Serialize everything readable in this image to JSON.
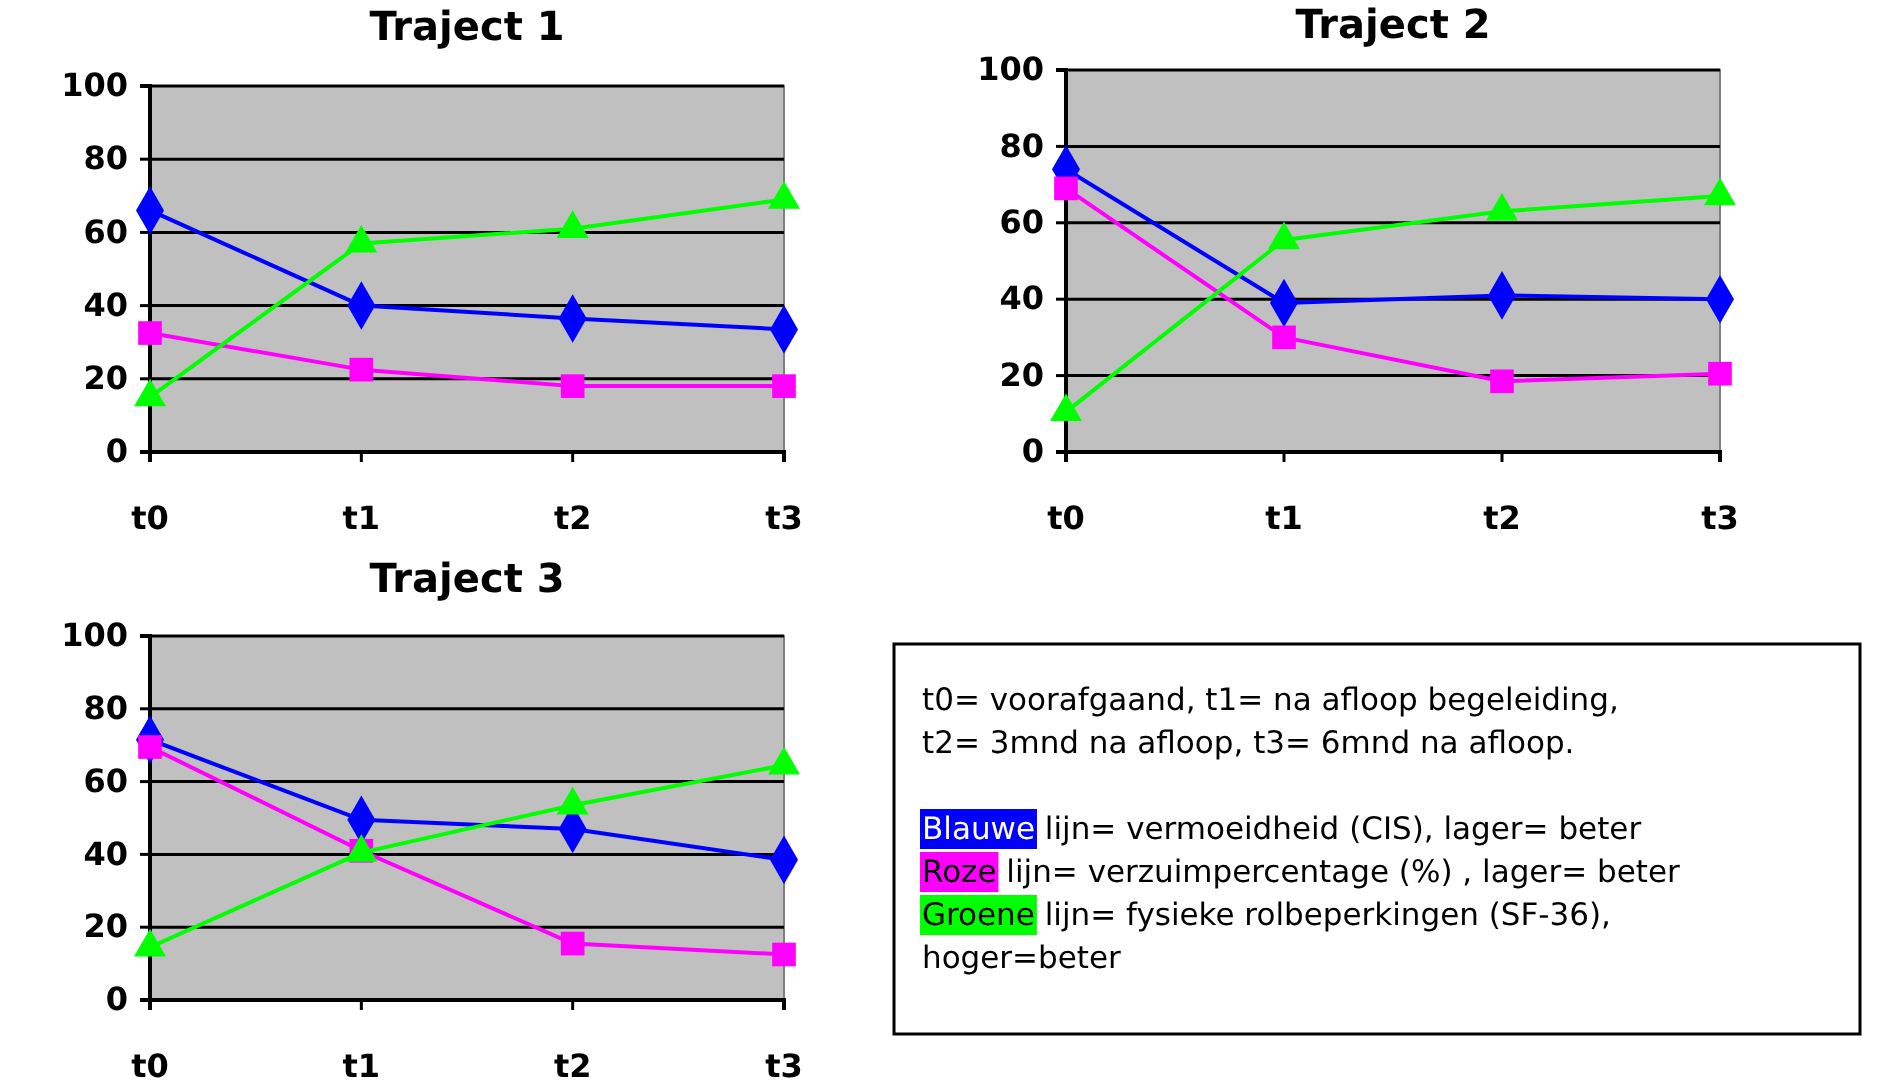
{
  "chart_data": [
    {
      "type": "line",
      "title": "Traject 1",
      "categories": [
        "t0",
        "t1",
        "t2",
        "t3"
      ],
      "ylim": [
        0,
        100
      ],
      "yticks": [
        0,
        20,
        40,
        60,
        80,
        100
      ],
      "grid": "y",
      "series": [
        {
          "color": "#0000ff",
          "marker": "diamond",
          "values": [
            66,
            40,
            36.5,
            33.5
          ]
        },
        {
          "color": "#ff00ff",
          "marker": "square",
          "values": [
            32.5,
            22.5,
            18,
            18
          ]
        },
        {
          "color": "#00ff00",
          "marker": "triangle",
          "values": [
            15,
            57,
            61,
            69
          ]
        }
      ]
    },
    {
      "type": "line",
      "title": "Traject 2",
      "categories": [
        "t0",
        "t1",
        "t2",
        "t3"
      ],
      "ylim": [
        0,
        100
      ],
      "yticks": [
        0,
        20,
        40,
        60,
        80,
        100
      ],
      "grid": "y",
      "series": [
        {
          "color": "#0000ff",
          "marker": "diamond",
          "values": [
            74,
            39,
            41,
            40
          ]
        },
        {
          "color": "#ff00ff",
          "marker": "square",
          "values": [
            69,
            30,
            18.5,
            20.5
          ]
        },
        {
          "color": "#00ff00",
          "marker": "triangle",
          "values": [
            10.5,
            55.5,
            63,
            67
          ]
        }
      ]
    },
    {
      "type": "line",
      "title": "Traject 3",
      "categories": [
        "t0",
        "t1",
        "t2",
        "t3"
      ],
      "ylim": [
        0,
        100
      ],
      "yticks": [
        0,
        20,
        40,
        60,
        80,
        100
      ],
      "grid": "y",
      "series": [
        {
          "color": "#0000ff",
          "marker": "diamond",
          "values": [
            71.5,
            49.5,
            47,
            38.5
          ]
        },
        {
          "color": "#ff00ff",
          "marker": "square",
          "values": [
            69.5,
            41,
            15.5,
            12.5
          ]
        },
        {
          "color": "#00ff00",
          "marker": "triangle",
          "values": [
            14.5,
            40.5,
            53.5,
            64.5
          ]
        }
      ]
    },
    {
      "type": "other",
      "annotations": [
        "t0= voorafgaand, t1= na afloop begeleiding,",
        "t2= 3mnd na afloop, t3= 6mnd na afloop.",
        "Blauwe lijn= vermoeidheid (CIS), lager= beter",
        "Roze lijn= verzuimpercentage (%) , lager= beter",
        "Groene lijn= fysieke rolbeperkingen (SF-36),",
        "hoger=beter"
      ],
      "colors": [
        null,
        null,
        "#0000ff",
        "#ff00ff",
        "#00ff00",
        null
      ]
    }
  ]
}
